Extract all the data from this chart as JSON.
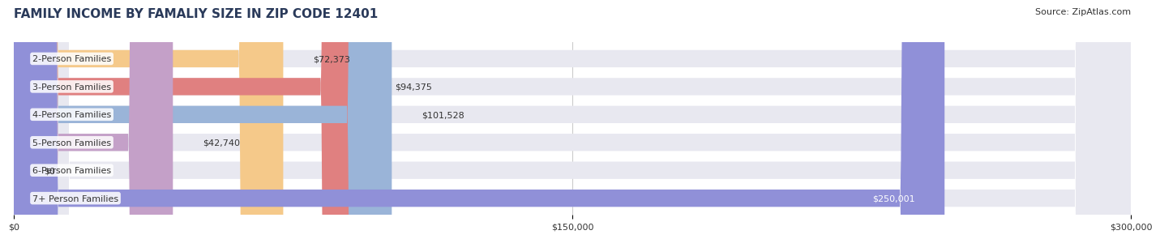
{
  "title": "FAMILY INCOME BY FAMALIY SIZE IN ZIP CODE 12401",
  "source": "Source: ZipAtlas.com",
  "categories": [
    "2-Person Families",
    "3-Person Families",
    "4-Person Families",
    "5-Person Families",
    "6-Person Families",
    "7+ Person Families"
  ],
  "values": [
    72373,
    94375,
    101528,
    42740,
    0,
    250001
  ],
  "value_labels": [
    "$72,373",
    "$94,375",
    "$101,528",
    "$42,740",
    "$0",
    "$250,001"
  ],
  "bar_colors": [
    "#f5c98a",
    "#e08080",
    "#9ab4d8",
    "#c4a0c8",
    "#70c8b8",
    "#9090d8"
  ],
  "bar_bg_color": "#e8e8f0",
  "xlim": [
    0,
    300000
  ],
  "xtick_values": [
    0,
    150000,
    300000
  ],
  "xtick_labels": [
    "$0",
    "$150,000",
    "$300,000"
  ],
  "title_fontsize": 11,
  "source_fontsize": 8,
  "label_fontsize": 8,
  "tick_fontsize": 8,
  "bar_height": 0.62,
  "fig_bg_color": "#ffffff",
  "label_color": "#333333",
  "title_color": "#2a3a5a",
  "grid_color": "#cccccc"
}
